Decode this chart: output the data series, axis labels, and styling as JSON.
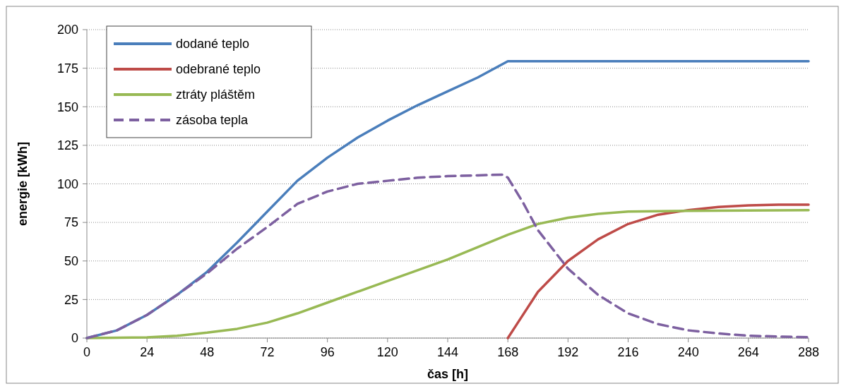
{
  "chart_data": {
    "type": "line",
    "xlabel": "čas [h]",
    "ylabel": "energie [kWh]",
    "xlim": [
      0,
      288
    ],
    "ylim": [
      0,
      200
    ],
    "xticks": [
      0,
      24,
      48,
      72,
      96,
      120,
      144,
      168,
      192,
      216,
      240,
      264,
      288
    ],
    "yticks": [
      0,
      25,
      50,
      75,
      100,
      125,
      150,
      175,
      200
    ],
    "grid": "y",
    "legend": "top left",
    "series": [
      {
        "name": "dodané teplo",
        "color": "#4a7ebb",
        "line_style": "solid",
        "x": [
          0,
          12,
          24,
          36,
          48,
          60,
          72,
          84,
          96,
          108,
          120,
          132,
          144,
          156,
          168,
          288
        ],
        "values": [
          0,
          5,
          15,
          28,
          43,
          62,
          82,
          102,
          117,
          130,
          141,
          151,
          160,
          169,
          179.5,
          179.5
        ]
      },
      {
        "name": "odebrané teplo",
        "color": "#be4b48",
        "line_style": "solid",
        "x": [
          168,
          172,
          180,
          192,
          204,
          216,
          228,
          240,
          252,
          264,
          276,
          288
        ],
        "values": [
          0,
          10,
          30,
          50,
          64,
          74,
          80,
          83,
          85,
          86,
          86.5,
          86.5
        ]
      },
      {
        "name": "ztráty pláštěm",
        "color": "#98b954",
        "line_style": "solid",
        "x": [
          0,
          24,
          36,
          48,
          60,
          72,
          84,
          96,
          108,
          120,
          132,
          144,
          156,
          168,
          180,
          192,
          204,
          216,
          240,
          288
        ],
        "values": [
          0,
          0.5,
          1.5,
          3.5,
          6,
          10,
          16,
          23,
          30,
          37,
          44,
          51,
          59,
          67,
          74,
          78,
          80.5,
          82,
          82.5,
          83
        ]
      },
      {
        "name": "zásoba tepla",
        "color": "#7d60a0",
        "line_style": "dashed",
        "x": [
          0,
          12,
          24,
          36,
          48,
          60,
          72,
          84,
          96,
          108,
          120,
          132,
          144,
          156,
          166,
          168,
          174,
          180,
          192,
          204,
          216,
          228,
          240,
          252,
          264,
          276,
          288
        ],
        "values": [
          0,
          5,
          15,
          28,
          42,
          58,
          72,
          87,
          95,
          100,
          102,
          104,
          105,
          105.5,
          106,
          104,
          88,
          70,
          45,
          28,
          16,
          9,
          5,
          3,
          1.5,
          1,
          0.5
        ]
      }
    ]
  }
}
